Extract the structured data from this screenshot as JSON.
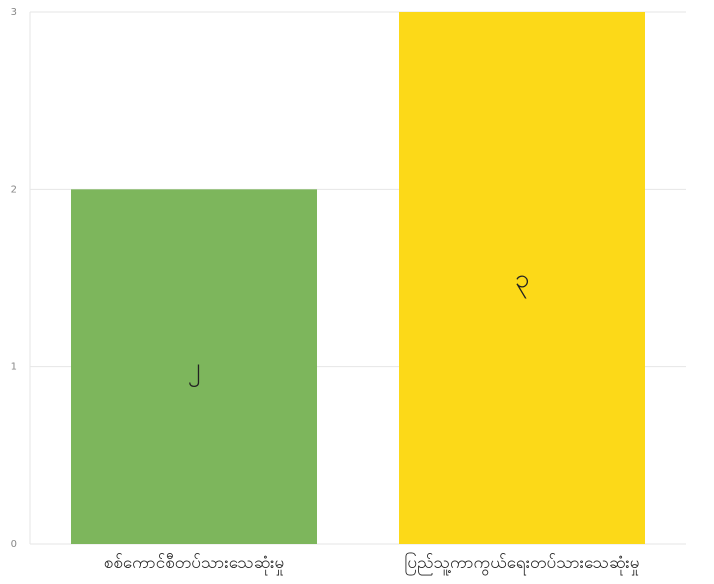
{
  "chart_data": {
    "type": "bar",
    "title": "",
    "xlabel": "",
    "ylabel": "",
    "categories": [
      "စစ်ကောင်စီတပ်သားသေဆုံးမှု",
      "ပြည်သူ့ကာကွယ်ရေးတပ်သားသေဆုံးမှု"
    ],
    "values": [
      2,
      3
    ],
    "data_labels": [
      "၂",
      "၃"
    ],
    "colors": [
      "#7db65c",
      "#fcd918"
    ],
    "ylim": [
      0,
      3
    ],
    "yticks": [
      0,
      1,
      2,
      3
    ],
    "ytick_labels": [
      "0",
      "1",
      "2",
      "3"
    ],
    "grid": true,
    "legend": "none"
  }
}
